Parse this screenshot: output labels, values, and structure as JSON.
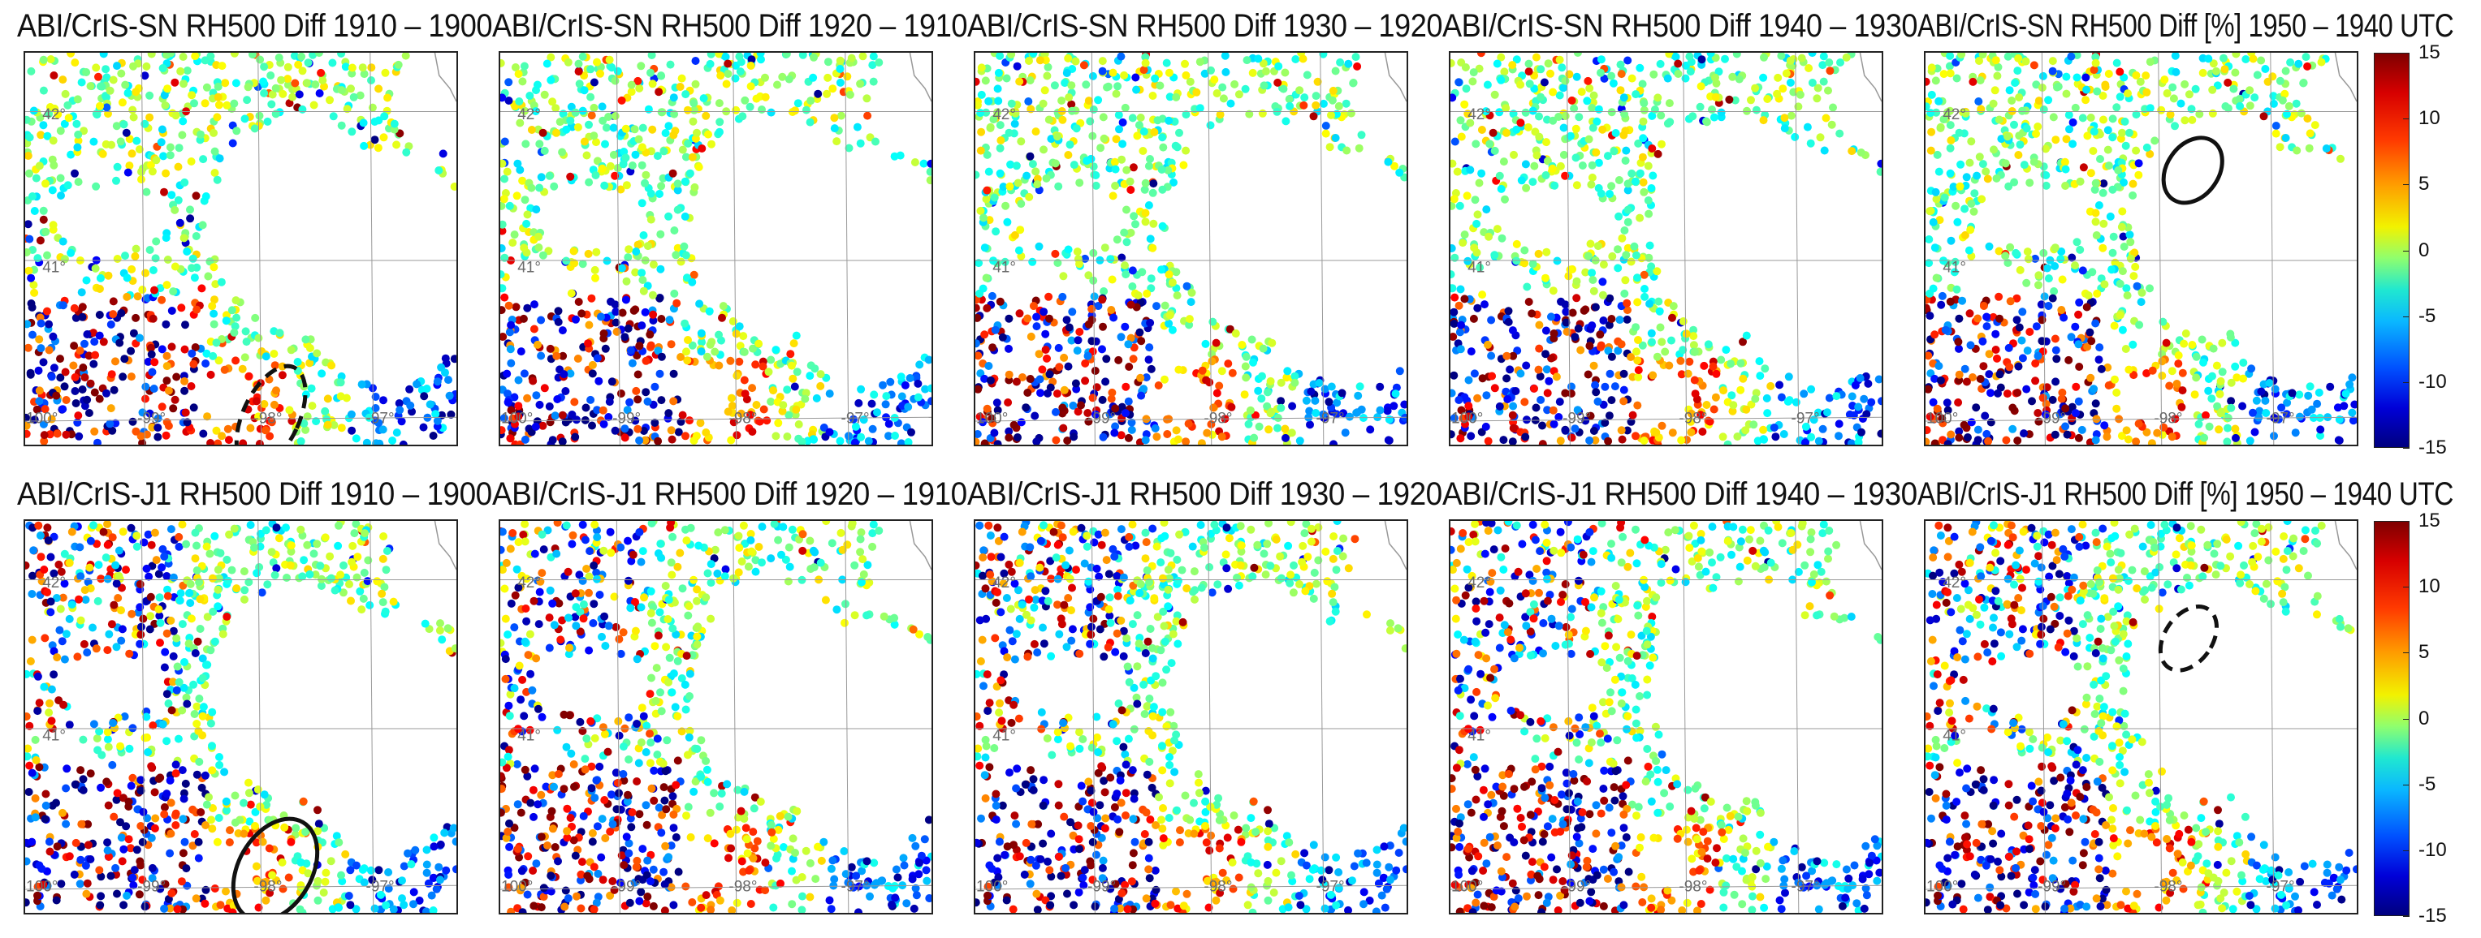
{
  "figure": {
    "rows": [
      {
        "instrument": "ABI/CrIS-SN",
        "panels": [
          {
            "title": "ABI/CrIS-SN RH500 Diff 1910 – 1900"
          },
          {
            "title": "ABI/CrIS-SN RH500 Diff 1920 – 1910"
          },
          {
            "title": "ABI/CrIS-SN RH500 Diff 1930 – 1920"
          },
          {
            "title": "ABI/CrIS-SN RH500 Diff 1940 – 1930"
          },
          {
            "title": "ABI/CrIS-SN RH500 Diff [%] 1950 – 1940 UTC"
          }
        ]
      },
      {
        "instrument": "ABI/CrIS-J1",
        "panels": [
          {
            "title": "ABI/CrIS-J1 RH500 Diff 1910 – 1900"
          },
          {
            "title": "ABI/CrIS-J1 RH500 Diff 1920 – 1910"
          },
          {
            "title": "ABI/CrIS-J1 RH500 Diff 1930 – 1920"
          },
          {
            "title": "ABI/CrIS-J1 RH500 Diff 1940 – 1930"
          },
          {
            "title": "ABI/CrIS-J1 RH500 Diff [%] 1950 – 1940 UTC"
          }
        ]
      }
    ],
    "map_labels": {
      "lat_42": "42°",
      "lat_41": "41°",
      "lon_100": "-100°",
      "lon_99": "-99°",
      "lon_98": "-98°",
      "lon_97": "-97°"
    },
    "colorbar": {
      "min": -15,
      "max": 15,
      "ticks": [
        "15",
        "10",
        "5",
        "0",
        "-5",
        "-10",
        "-15"
      ],
      "colormap": "jet"
    },
    "annotations": [
      {
        "row": 0,
        "col": 0,
        "shape": "ellipse",
        "style": "dashed"
      },
      {
        "row": 0,
        "col": 4,
        "shape": "ellipse",
        "style": "solid"
      },
      {
        "row": 1,
        "col": 0,
        "shape": "ellipse",
        "style": "solid"
      },
      {
        "row": 1,
        "col": 4,
        "shape": "ellipse",
        "style": "dashed"
      }
    ]
  }
}
